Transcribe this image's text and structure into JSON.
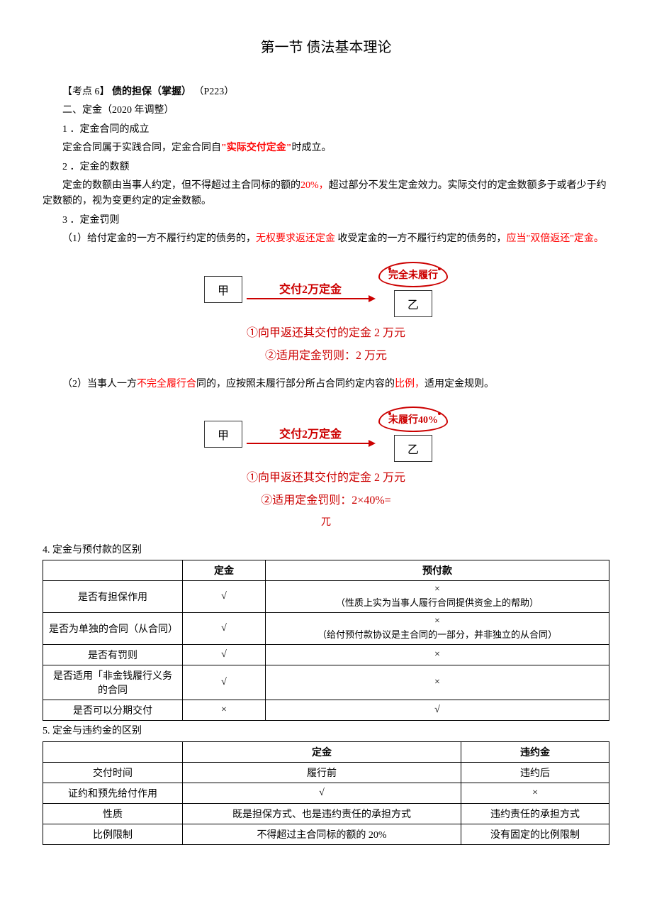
{
  "title": "第一节 债法基本理论",
  "heading": {
    "prefix": "【考点 6】",
    "main": "债的担保（掌握）",
    "page": "（P223）"
  },
  "sec2_title": "二、定金（2020 年调整）",
  "p1_num": "1 ．定金合同的成立",
  "p1_body_a": "定金合同属于实践合同，定金合同自",
  "p1_body_b": "\"实际交付定金\"",
  "p1_body_c": "时成立。",
  "p2_num": "2 ．定金的数额",
  "p2_body_a": "定金的数额由当事人约定，但不得超过主合同标的额的",
  "p2_body_b": "20%，",
  "p2_body_c": "超过部分不发生定金效力。实际交付的定金数额多于或者少于约定数额的，视为变更约定的定金数额。",
  "p3_num": "3 ．定金罚则",
  "p3_body_a": "（1）给付定金的一方不履行约定的债务的，",
  "p3_body_b": "无权要求返还定金",
  "p3_body_c": " 收受定金的一方不履行约定的债务的，",
  "p3_body_d": "应当\"双倍返还\"定金。",
  "diagram1": {
    "left": "甲",
    "arrow_label": "交付2万定金",
    "cloud": "完全未履行",
    "right": "乙",
    "line1": "①向甲返还其交付的定金 2 万元",
    "line2": "②适用定金罚则：2 万元"
  },
  "p4_a": "（2）当事人一方",
  "p4_b": "不完全履行合",
  "p4_c": "同的，应按照未履行部分所占合同约定内容的",
  "p4_d": "比例，",
  "p4_e": "适用定金规则。",
  "diagram2": {
    "left": "甲",
    "arrow_label": "交付2万定金",
    "cloud": "未履行40%",
    "right": "乙",
    "line1": "①向甲返还其交付的定金 2 万元",
    "line2": "②适用定金罚则：2×40%=",
    "unit": "兀"
  },
  "sec4_title": "4. 定金与预付款的区别",
  "table1": {
    "head": [
      "",
      "定金",
      "预付款"
    ],
    "rows": [
      {
        "label": "是否有担保作用",
        "c1": "√",
        "c2": "×",
        "note": "（性质上实为当事人履行合同提供资金上的帮助）"
      },
      {
        "label": "是否为单独的合同（从合同）",
        "c1": "√",
        "c2": "×",
        "note": "（给付预付款协议是主合同的一部分，并非独立的从合同）"
      },
      {
        "label": "是否有罚则",
        "c1": "√",
        "c2": "×",
        "note": ""
      },
      {
        "label": "是否适用「非金钱履行义务的合同",
        "c1": "√",
        "c2": "×",
        "note": ""
      },
      {
        "label": "是否可以分期交付",
        "c1": "×",
        "c2": "√",
        "note": ""
      }
    ]
  },
  "sec5_title": "5. 定金与违约金的区别",
  "table2": {
    "head": [
      "",
      "定金",
      "违约金"
    ],
    "rows": [
      {
        "label": "交付时间",
        "c1": "履行前",
        "c2": "违约后"
      },
      {
        "label": "证约和预先给付作用",
        "c1": "√",
        "c2": "×"
      },
      {
        "label": "性质",
        "c1": "既是担保方式、也是违约责任的承担方式",
        "c2": "违约责任的承担方式"
      },
      {
        "label": "比例限制",
        "c1": "不得超过主合同标的额的 20%",
        "c2": "没有固定的比例限制"
      }
    ]
  }
}
